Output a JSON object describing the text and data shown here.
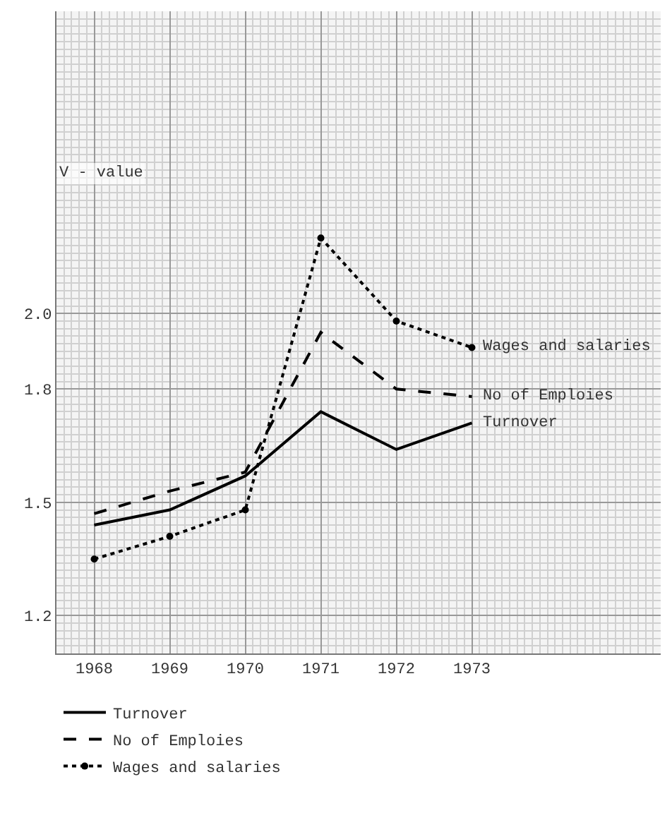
{
  "chart_data": {
    "type": "line",
    "ylabel": "V - value",
    "x": [
      1968,
      1969,
      1970,
      1971,
      1972,
      1973
    ],
    "series": [
      {
        "name": "Turnover",
        "color": "#000000",
        "line_style": "solid",
        "marker": "none",
        "values": [
          1.44,
          1.48,
          1.57,
          1.74,
          1.64,
          1.71
        ]
      },
      {
        "name": "No of Emploies",
        "color": "#000000",
        "line_style": "dashed",
        "marker": "none",
        "values": [
          1.47,
          1.53,
          1.58,
          1.95,
          1.8,
          1.78
        ]
      },
      {
        "name": "Wages and salaries",
        "color": "#000000",
        "line_style": "dotted",
        "marker": "circle",
        "values": [
          1.35,
          1.41,
          1.48,
          2.2,
          1.98,
          1.91
        ]
      }
    ],
    "xlim": [
      1967.5,
      1975.5
    ],
    "ylim": [
      1.1,
      2.8
    ],
    "xticks": [
      1968,
      1969,
      1970,
      1971,
      1972,
      1973
    ],
    "yticks": [
      1.2,
      1.5,
      1.8,
      {
        "value": 2,
        "label": "2.0"
      }
    ],
    "grid": true,
    "legend": "bottom"
  }
}
